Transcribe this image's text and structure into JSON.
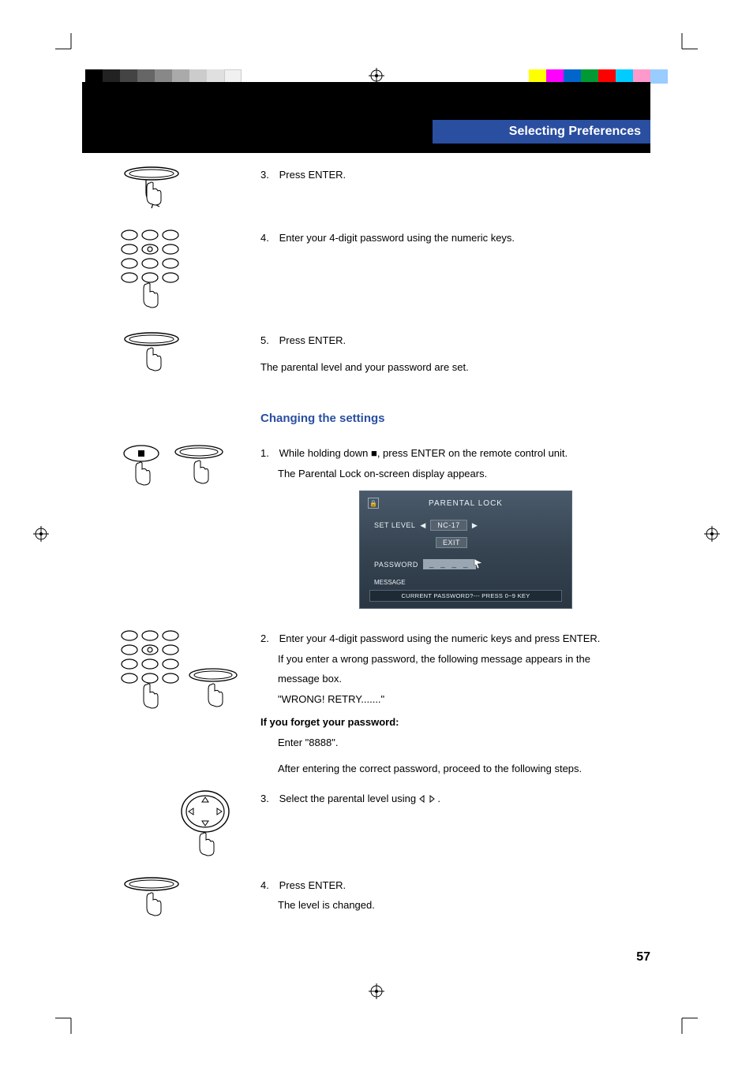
{
  "page_number": "57",
  "header": {
    "title": "Selecting Preferences",
    "bg_color": "#2a4ea0",
    "text_color": "#ffffff"
  },
  "black_band_color": "#000000",
  "colorbar": {
    "left_gradient_steps": 10,
    "right_colors": [
      "#ffff00",
      "#ff00ff",
      "#0066cc",
      "#009933",
      "#ff0000",
      "#00ccff",
      "#ff99cc",
      "#99ccff"
    ]
  },
  "steps_a": [
    {
      "num": "3.",
      "text": "Press ENTER."
    },
    {
      "num": "4.",
      "text": "Enter your 4-digit password using the numeric keys."
    },
    {
      "num": "5.",
      "text": "Press ENTER."
    }
  ],
  "note_a": "The parental level and your password are set.",
  "subsection_title": "Changing the settings",
  "steps_b1": {
    "num": "1.",
    "line1": "While holding down ■, press ENTER on the remote control unit.",
    "line2": "The Parental Lock on-screen display appears."
  },
  "osd": {
    "title": "PARENTAL LOCK",
    "icon": "🔒",
    "set_level_label": "SET LEVEL",
    "set_level_value": "NC-17",
    "exit_label": "EXIT",
    "password_label": "PASSWORD",
    "password_value": "_ _ _ _",
    "message_label": "MESSAGE",
    "message_text": "CURRENT PASSWORD?--- PRESS 0~9 KEY",
    "bg_gradient_top": "#4a5a6a",
    "bg_gradient_bottom": "#2a3642"
  },
  "steps_b2": {
    "num": "2.",
    "line1": "Enter your 4-digit password using the numeric keys and press ENTER.",
    "line2": "If you enter a wrong password, the following message appears in the",
    "line3": "message box.",
    "line4": "\"WRONG! RETRY.......\""
  },
  "forgot": {
    "heading": "If you forget your password:",
    "line": "Enter \"8888\".",
    "after": "After entering the correct password, proceed to the following steps."
  },
  "steps_b3": {
    "num": "3.",
    "text_before": "Select the parental level using ",
    "text_after": " ."
  },
  "steps_b4": {
    "num": "4.",
    "line1": "Press ENTER.",
    "line2": "The level is changed."
  },
  "icons": {
    "enter": "enter-button-icon",
    "keypad": "numeric-keypad-icon",
    "stop_enter": "stop-and-enter-icon",
    "dpad": "dpad-icon"
  }
}
